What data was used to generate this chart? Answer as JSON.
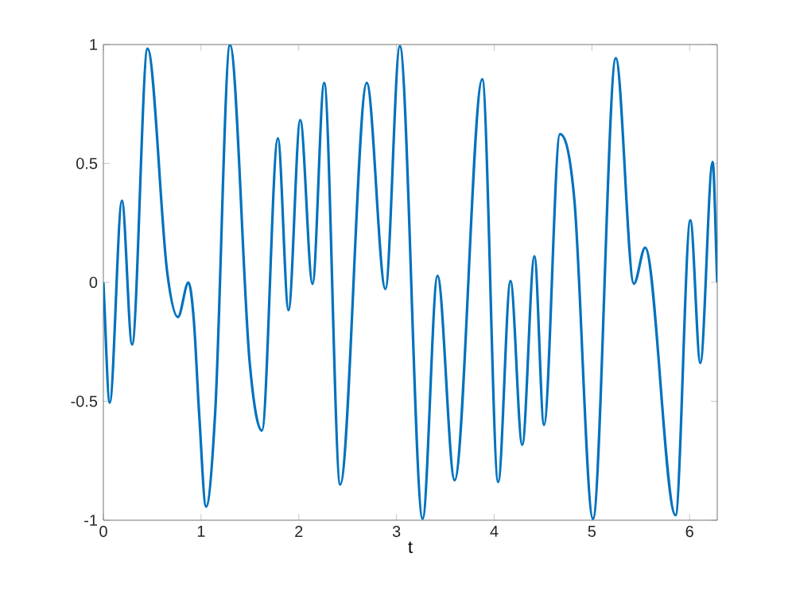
{
  "chart_data": {
    "type": "line",
    "xlabel": "t",
    "xlim": [
      0,
      6.2832
    ],
    "ylim": [
      -1,
      1
    ],
    "xticks": [
      0,
      1,
      2,
      3,
      4,
      5,
      6
    ],
    "yticks": [
      -1,
      -0.5,
      0,
      0.5,
      1
    ],
    "marker": "none",
    "line_style": "solid",
    "series": [
      {
        "color": "#0072bd",
        "x": [
          0,
          0.065,
          0.19,
          0.294,
          0.452,
          0.654,
          0.763,
          0.871,
          0.926,
          0.98,
          1.051,
          1.144,
          1.296,
          1.498,
          1.623,
          1.786,
          1.895,
          2.015,
          2.141,
          2.26,
          2.424,
          2.696,
          2.887,
          3.034,
          3.268,
          3.42,
          3.595,
          3.878,
          4.041,
          4.167,
          4.287,
          4.412,
          4.51,
          4.673,
          4.82,
          5.011,
          5.245,
          5.43,
          5.545,
          5.856,
          6.008,
          6.11,
          6.236,
          6.283
        ],
        "values": [
          0,
          -0.506,
          0.343,
          -0.261,
          0.983,
          0.04,
          -0.146,
          0.0,
          -0.16,
          -0.55,
          -0.943,
          -0.55,
          0.999,
          -0.339,
          -0.623,
          0.606,
          -0.117,
          0.683,
          -0.006,
          0.839,
          -0.85,
          0.839,
          -0.028,
          0.994,
          -0.994,
          0.028,
          -0.832,
          0.854,
          -0.839,
          0.006,
          -0.683,
          0.11,
          -0.599,
          0.623,
          0.35,
          -0.994,
          0.943,
          -0.006,
          0.146,
          -0.979,
          0.261,
          -0.339,
          0.506,
          0
        ]
      }
    ]
  }
}
